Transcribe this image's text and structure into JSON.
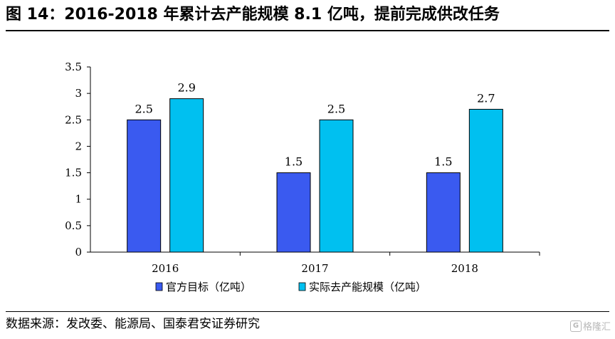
{
  "header": {
    "title": "图 14：2016-2018 年累计去产能规模 8.1 亿吨，提前完成供改任务"
  },
  "footer": {
    "source": "数据来源：发改委、能源局、国泰君安证券研究",
    "watermark_text": "格隆汇",
    "watermark_logo": "G"
  },
  "chart_data": {
    "type": "bar",
    "categories": [
      "2016",
      "2017",
      "2018"
    ],
    "series": [
      {
        "name": "官方目标（亿吨）",
        "values": [
          2.5,
          1.5,
          1.5
        ],
        "color": "#3a5af0"
      },
      {
        "name": "实际去产能规模（亿吨）",
        "values": [
          2.9,
          2.5,
          2.7
        ],
        "color": "#00c0f0"
      }
    ],
    "value_labels": [
      [
        "2.5",
        "1.5",
        "1.5"
      ],
      [
        "2.9",
        "2.5",
        "2.7"
      ]
    ],
    "y_ticks": [
      "0",
      "0.5",
      "1",
      "1.5",
      "2",
      "2.5",
      "3",
      "3.5"
    ],
    "ylim": [
      0,
      3.5
    ],
    "legend_position": "bottom",
    "grid": false,
    "title": "",
    "xlabel": "",
    "ylabel": ""
  }
}
